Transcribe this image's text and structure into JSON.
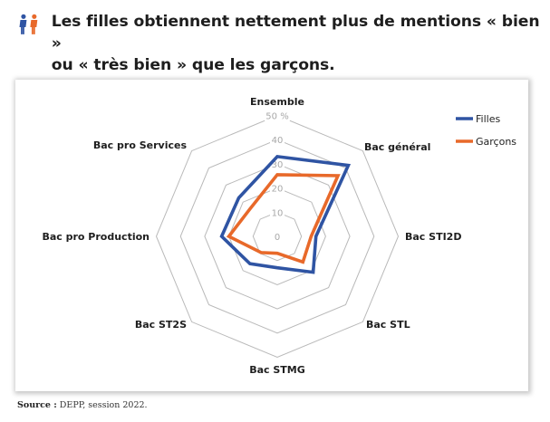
{
  "header": {
    "icon": "people-pair-icon",
    "title_line1": "Les filles obtiennent nettement plus de mentions « bien »",
    "title_line2": "ou « très bien » que les garçons."
  },
  "source": {
    "label": "Source :",
    "text": " DEPP, session 2022."
  },
  "colors": {
    "filles": "#2f54a3",
    "garcons": "#e8692a",
    "grid": "#b9b9b9",
    "icon_left": "#2f54a3",
    "icon_right": "#e8692a"
  },
  "chart_data": {
    "type": "radar",
    "title": "Les filles obtiennent nettement plus de mentions « bien » ou « très bien » que les garçons.",
    "categories": [
      "Ensemble",
      "Bac général",
      "Bac STI2D",
      "Bac STL",
      "Bac STMG",
      "Bac ST2S",
      "Bac pro Production",
      "Bac pro Services"
    ],
    "series": [
      {
        "name": "Filles",
        "values": [
          33,
          41.5,
          16,
          21,
          13,
          16,
          23,
          22.5
        ]
      },
      {
        "name": "Garçons",
        "values": [
          25.5,
          35.5,
          14,
          15,
          7,
          9.5,
          20,
          16
        ]
      }
    ],
    "rlim": [
      0,
      50
    ],
    "ticks": [
      0,
      10,
      20,
      30,
      40,
      50
    ],
    "tick_labels": [
      "0",
      "10",
      "20",
      "30",
      "40",
      "50 %"
    ],
    "grid": true,
    "legend": {
      "position": "top-right",
      "entries": [
        "Filles",
        "Garçons"
      ]
    },
    "unit": "%"
  }
}
